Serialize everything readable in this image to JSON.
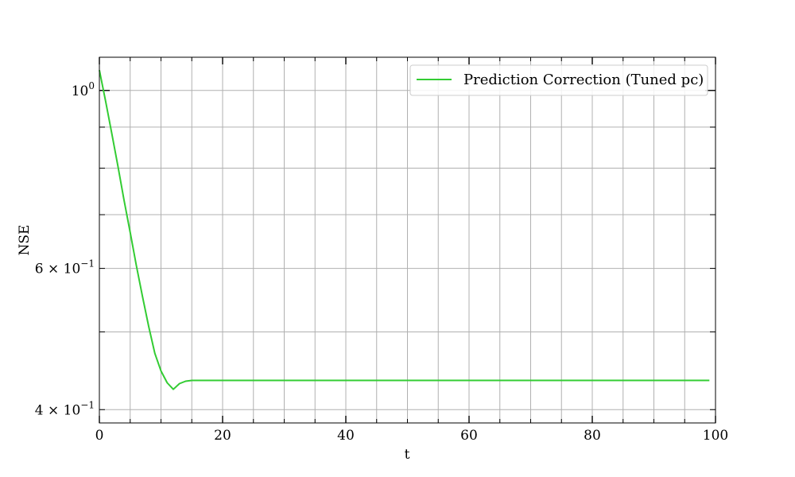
{
  "chart_data": {
    "type": "line",
    "xlabel": "t",
    "ylabel": "NSE",
    "xlim": [
      0,
      100
    ],
    "ylim": [
      0.385,
      1.1
    ],
    "yscale": "log",
    "grid": true,
    "legend_position": "top-right",
    "x_ticks": [
      {
        "value": 0,
        "label": "0"
      },
      {
        "value": 20,
        "label": "20"
      },
      {
        "value": 40,
        "label": "40"
      },
      {
        "value": 60,
        "label": "60"
      },
      {
        "value": 80,
        "label": "80"
      },
      {
        "value": 100,
        "label": "100"
      }
    ],
    "y_ticks": [
      {
        "value": 1.0,
        "mantissa": "",
        "base": "10",
        "exp": "0"
      },
      {
        "value": 0.6,
        "mantissa": "6 × ",
        "base": "10",
        "exp": "−1"
      },
      {
        "value": 0.4,
        "mantissa": "4 × ",
        "base": "10",
        "exp": "−1"
      }
    ],
    "series": [
      {
        "name": "Prediction Correction (Tuned pc)",
        "color": "#33cc33",
        "x": [
          0,
          1,
          2,
          3,
          4,
          5,
          6,
          7,
          8,
          9,
          10,
          11,
          12,
          13,
          14,
          15,
          20,
          30,
          40,
          50,
          60,
          70,
          80,
          90,
          99
        ],
        "y": [
          1.06,
          0.97,
          0.885,
          0.805,
          0.73,
          0.665,
          0.605,
          0.553,
          0.508,
          0.47,
          0.447,
          0.432,
          0.424,
          0.431,
          0.434,
          0.435,
          0.435,
          0.435,
          0.435,
          0.435,
          0.435,
          0.435,
          0.435,
          0.435,
          0.435
        ]
      }
    ]
  }
}
